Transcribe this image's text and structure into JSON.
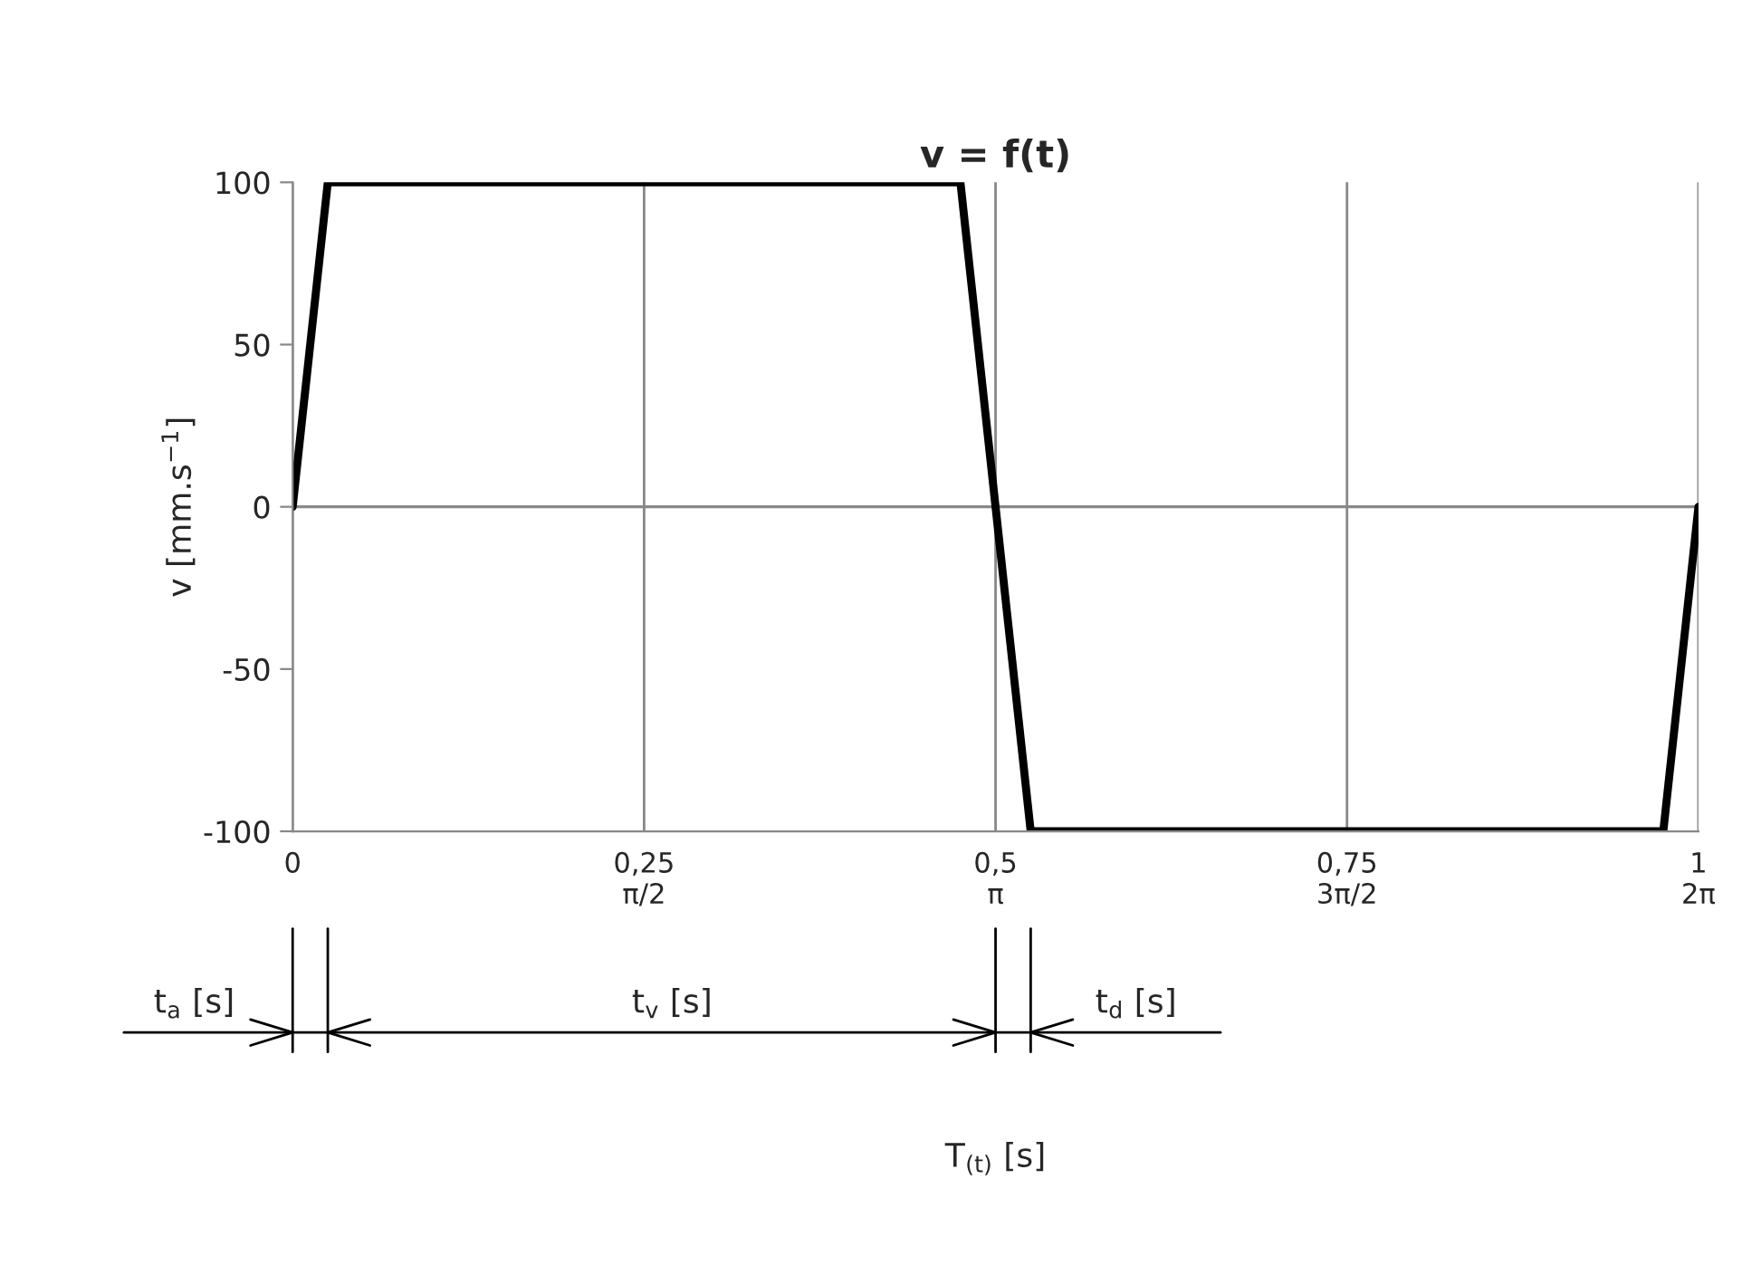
{
  "chart_data": {
    "type": "line",
    "title": "v = f(t)",
    "ylabel": "v [mm.s$^{−1}$]",
    "x": [
      0,
      0.025,
      0.475,
      0.5,
      0.525,
      0.975,
      1
    ],
    "series": [
      {
        "color": "#000000",
        "values": [
          0,
          100,
          100,
          0,
          -100,
          -100,
          0
        ]
      }
    ],
    "xlim": [
      0,
      1
    ],
    "ylim": [
      -100,
      100
    ],
    "xticks": [
      0,
      {
        "value": 0.25,
        "label": "0,25\nπ/2"
      },
      {
        "value": 0.5,
        "label": "0,5\nπ"
      },
      {
        "value": 0.75,
        "label": "0,75\n3π/2"
      },
      {
        "value": 1,
        "label": "1\n2π"
      }
    ],
    "yticks": [
      -100,
      -50,
      0,
      50,
      100
    ],
    "grid": "x",
    "legend": false,
    "marker": "none",
    "line_style": "solid",
    "ref_lines": [
      {
        "axis": "y",
        "value": 0,
        "color": "#888888"
      }
    ],
    "annotations": [
      "t$_{a}$ [s]",
      "t$_{v}$ [s]",
      "t$_{d}$ [s]",
      "T$_{(t)}$ [s]"
    ]
  }
}
